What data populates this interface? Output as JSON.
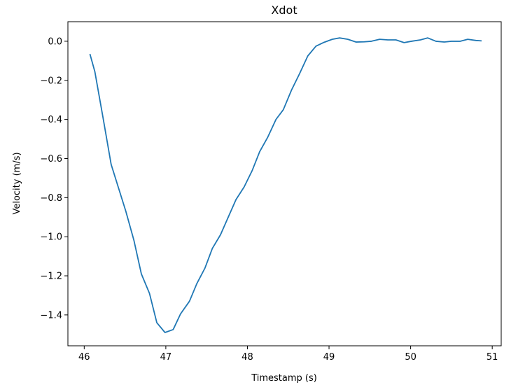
{
  "chart_data": {
    "type": "line",
    "title": "Xdot",
    "x_label": "Timestamp (s)",
    "y_label": "Velocity (m/s)",
    "xlim": [
      45.8,
      51.11
    ],
    "ylim": [
      -1.558,
      0.1
    ],
    "xticks": [
      46,
      47,
      48,
      49,
      50,
      51
    ],
    "yticks": [
      {
        "value": 0,
        "label": "0.0"
      },
      {
        "value": -0.2,
        "label": "−0.2"
      },
      {
        "value": -0.4,
        "label": "−0.4"
      },
      {
        "value": -0.6,
        "label": "−0.6"
      },
      {
        "value": -0.8,
        "label": "−0.8"
      },
      {
        "value": -1.0,
        "label": "−1.0"
      },
      {
        "value": -1.2,
        "label": "−1.2"
      },
      {
        "value": -1.4,
        "label": "−1.4"
      }
    ],
    "grid": false,
    "series": [
      {
        "color": "#1f77b4",
        "x": [
          46.07,
          46.13,
          46.23,
          46.33,
          46.42,
          46.51,
          46.61,
          46.7,
          46.8,
          46.89,
          46.99,
          47.09,
          47.18,
          47.29,
          47.38,
          47.48,
          47.57,
          47.67,
          47.77,
          47.86,
          47.96,
          48.06,
          48.15,
          48.25,
          48.35,
          48.44,
          48.54,
          48.64,
          48.74,
          48.84,
          48.93,
          49.04,
          49.13,
          49.23,
          49.33,
          49.43,
          49.52,
          49.62,
          49.72,
          49.82,
          49.92,
          50.01,
          50.12,
          50.21,
          50.31,
          50.41,
          50.5,
          50.61,
          50.7,
          50.8,
          50.87
        ],
        "values": [
          -0.065,
          -0.155,
          -0.39,
          -0.63,
          -0.75,
          -0.87,
          -1.02,
          -1.19,
          -1.29,
          -1.44,
          -1.49,
          -1.475,
          -1.395,
          -1.33,
          -1.24,
          -1.16,
          -1.06,
          -0.99,
          -0.895,
          -0.81,
          -0.745,
          -0.66,
          -0.565,
          -0.49,
          -0.4,
          -0.35,
          -0.25,
          -0.165,
          -0.075,
          -0.025,
          -0.007,
          0.01,
          0.017,
          0.01,
          -0.004,
          -0.003,
          0,
          0.01,
          0.007,
          0.007,
          -0.007,
          0,
          0.007,
          0.017,
          0,
          -0.004,
          0,
          0,
          0.01,
          0.004,
          0.002
        ]
      }
    ]
  }
}
